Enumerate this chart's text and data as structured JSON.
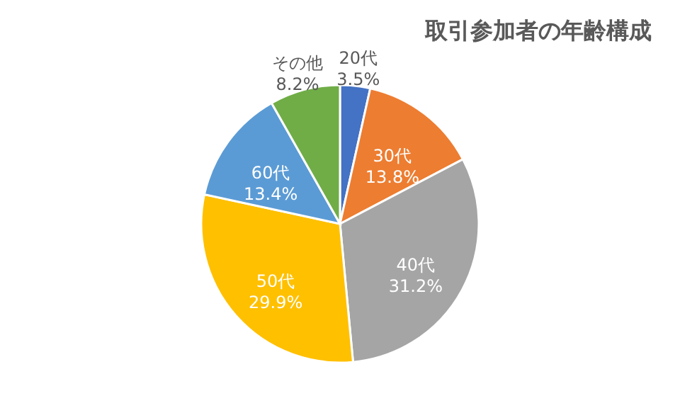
{
  "chart_data": {
    "type": "pie",
    "title": "取引参加者の年齢構成",
    "categories": [
      "20代",
      "30代",
      "40代",
      "50代",
      "60代",
      "その他"
    ],
    "values": [
      3.5,
      13.8,
      31.2,
      29.9,
      13.4,
      8.2
    ],
    "value_labels": [
      "3.5%",
      "13.8%",
      "31.2%",
      "29.9%",
      "13.4%",
      "8.2%"
    ],
    "colors": [
      "#4472c4",
      "#ed7d31",
      "#a5a5a5",
      "#ffc000",
      "#5b9bd5",
      "#70ad47"
    ]
  }
}
